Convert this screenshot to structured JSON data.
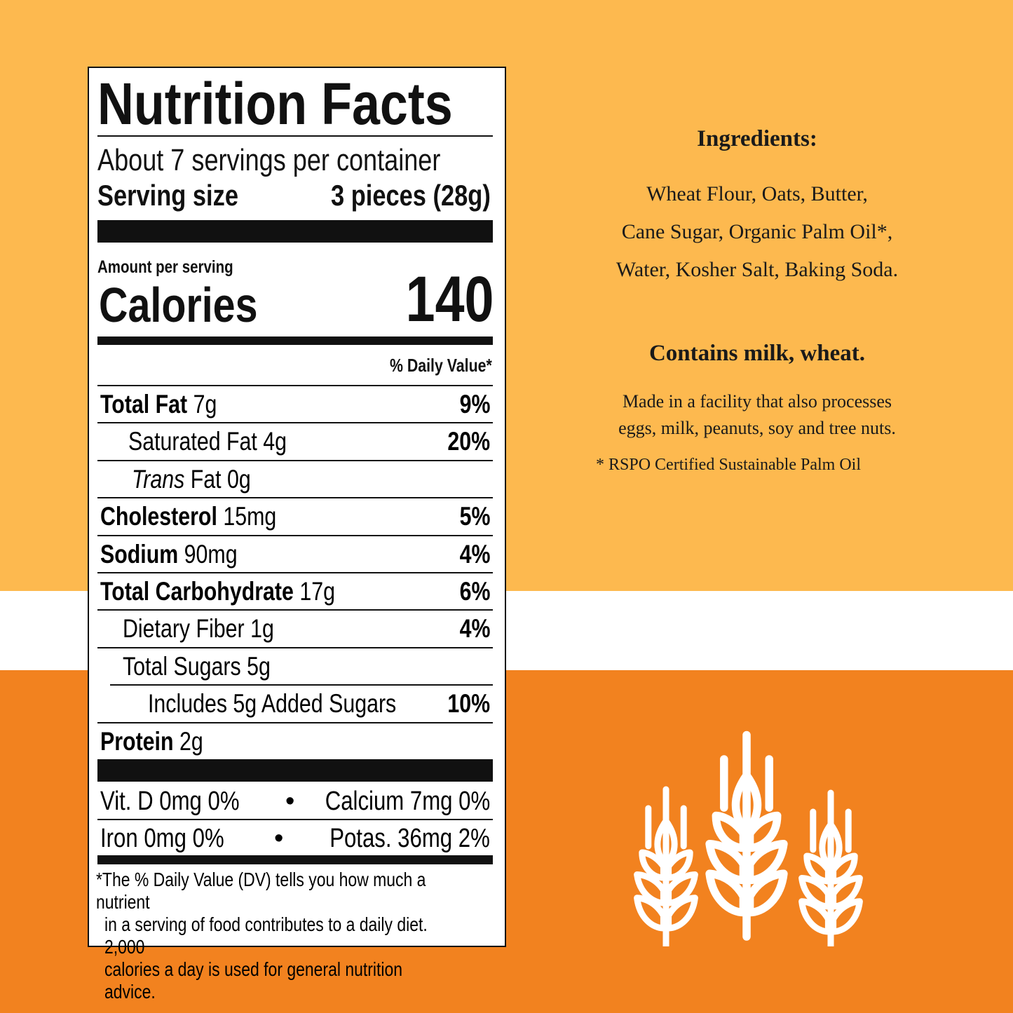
{
  "colors": {
    "top_band": "#fdb94f",
    "middle_band": "#ffffff",
    "bottom_band": "#f2821f",
    "label_ink": "#111111"
  },
  "label": {
    "title": "Nutrition Facts",
    "servings": "About 7 servings per container",
    "serving_size_label": "Serving size",
    "serving_size_value": "3 pieces (28g)",
    "amount_per_serving": "Amount per serving",
    "calories_label": "Calories",
    "calories_value": "140",
    "dv_header": "% Daily Value*",
    "rows": [
      {
        "name": "Total Fat",
        "amount": "7g",
        "dv": "9%"
      },
      {
        "name": "Saturated Fat 4g",
        "amount": "",
        "dv": "20%"
      },
      {
        "name": "Trans",
        "amount": "Fat 0g",
        "dv": ""
      },
      {
        "name": "Cholesterol",
        "amount": "15mg",
        "dv": "5%"
      },
      {
        "name": "Sodium",
        "amount": "90mg",
        "dv": "4%"
      },
      {
        "name": "Total Carbohydrate",
        "amount": "17g",
        "dv": "6%"
      },
      {
        "name": "Dietary Fiber 1g",
        "amount": "",
        "dv": "4%"
      },
      {
        "name": "Total Sugars 5g",
        "amount": "",
        "dv": ""
      },
      {
        "name": "Includes 5g Added Sugars",
        "amount": "",
        "dv": "10%"
      },
      {
        "name": "Protein",
        "amount": "2g",
        "dv": ""
      }
    ],
    "vitamins": [
      {
        "left": "Vit. D 0mg 0%",
        "right": "Calcium 7mg 0%"
      },
      {
        "left": "Iron 0mg 0%",
        "right": "Potas. 36mg 2%"
      }
    ],
    "bullet": "•",
    "footnote": [
      "*The % Daily Value (DV) tells you how much a nutrient",
      "in a serving of food contributes to a daily diet. 2,000",
      "calories a day is used for general nutrition advice."
    ]
  },
  "ingredients": {
    "heading": "Ingredients:",
    "lines": [
      "Wheat Flour, Oats, Butter,",
      "Cane Sugar, Organic Palm Oil*,",
      "Water, Kosher Salt, Baking Soda."
    ],
    "allergens": "Contains milk, wheat.",
    "facility": [
      "Made in a facility that also processes",
      "eggs, milk, peanuts, soy and tree nuts."
    ],
    "rspo": "* RSPO Certified Sustainable Palm Oil"
  },
  "icons": {
    "decoration": "wheat-stalks-icon"
  }
}
